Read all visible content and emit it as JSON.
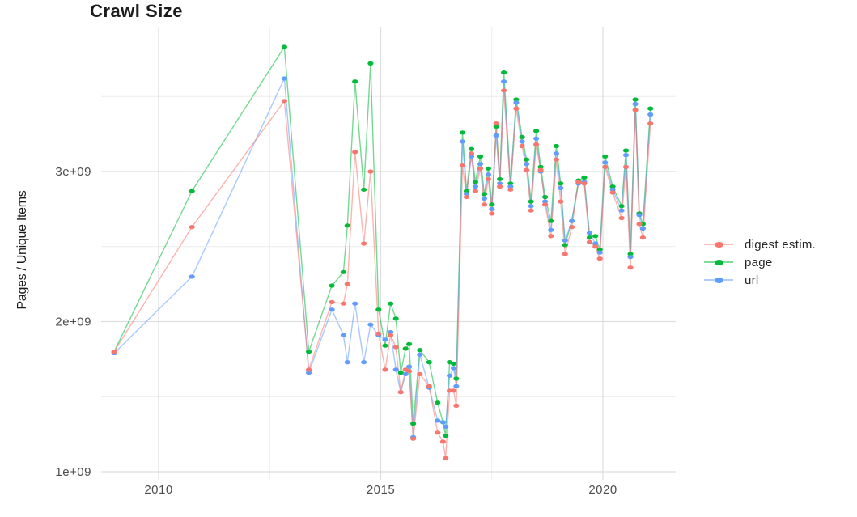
{
  "title": "Crawl Size",
  "ylabel": "Pages / Unique Items",
  "legend": {
    "position": "right",
    "items": [
      {
        "label": "digest estim.",
        "color": "#F8766D"
      },
      {
        "label": "page",
        "color": "#00BA38"
      },
      {
        "label": "url",
        "color": "#619CFF"
      }
    ]
  },
  "axes": {
    "x_tick_labels": [
      "2010",
      "2015",
      "2020"
    ],
    "y_tick_labels": [
      "1e+09",
      "2e+09",
      "3e+09"
    ]
  },
  "chart_data": {
    "type": "line",
    "title": "Crawl Size",
    "xlabel": "",
    "ylabel": "Pages / Unique Items",
    "x_unit": "year (decimal date of crawl)",
    "y_unit": "pages / unique items, billions (1e9)",
    "grid": "major+minor",
    "legend_position": "right",
    "xlim": [
      2008.7,
      2021.65
    ],
    "ylim_billions": [
      0.97,
      3.97
    ],
    "x_ticks": [
      2010,
      2015,
      2020
    ],
    "x_minor_ticks": [
      2012.5,
      2017.5
    ],
    "y_ticks_billions": [
      1,
      2,
      3
    ],
    "y_tick_labels": [
      "1e+09",
      "2e+09",
      "3e+09"
    ],
    "y_minor_ticks_billions": [
      1.5,
      2.5,
      3.5
    ],
    "x": [
      2009.0,
      2010.75,
      2012.83,
      2013.38,
      2013.9,
      2014.16,
      2014.25,
      2014.42,
      2014.62,
      2014.77,
      2014.95,
      2015.1,
      2015.22,
      2015.34,
      2015.45,
      2015.56,
      2015.64,
      2015.73,
      2015.88,
      2016.09,
      2016.28,
      2016.4,
      2016.46,
      2016.55,
      2016.64,
      2016.7,
      2016.84,
      2016.93,
      2017.04,
      2017.13,
      2017.24,
      2017.33,
      2017.42,
      2017.5,
      2017.6,
      2017.68,
      2017.77,
      2017.92,
      2018.05,
      2018.18,
      2018.28,
      2018.38,
      2018.5,
      2018.6,
      2018.7,
      2018.83,
      2018.95,
      2019.05,
      2019.15,
      2019.3,
      2019.45,
      2019.58,
      2019.7,
      2019.83,
      2019.93,
      2020.05,
      2020.22,
      2020.42,
      2020.52,
      2020.62,
      2020.73,
      2020.82,
      2020.9,
      2021.07
    ],
    "series": [
      {
        "name": "digest estim.",
        "color": "#F8766D",
        "draw_order": 3,
        "values_billions": [
          1.8,
          2.63,
          3.47,
          1.68,
          2.13,
          2.12,
          2.25,
          3.13,
          2.52,
          3.0,
          1.92,
          1.68,
          1.91,
          1.83,
          1.53,
          1.68,
          1.67,
          1.22,
          1.65,
          1.57,
          1.26,
          1.2,
          1.09,
          1.54,
          1.54,
          1.44,
          3.04,
          2.83,
          3.12,
          2.87,
          3.02,
          2.78,
          2.95,
          2.72,
          3.32,
          2.9,
          3.54,
          2.88,
          3.42,
          3.17,
          3.01,
          2.74,
          3.18,
          3.01,
          2.78,
          2.57,
          3.08,
          2.8,
          2.45,
          2.63,
          2.93,
          2.92,
          2.53,
          2.5,
          2.42,
          3.03,
          2.86,
          2.69,
          3.03,
          2.36,
          3.41,
          2.65,
          2.56,
          3.32
        ]
      },
      {
        "name": "page",
        "color": "#00BA38",
        "draw_order": 1,
        "values_billions": [
          1.8,
          2.87,
          3.83,
          1.8,
          2.24,
          2.33,
          2.64,
          3.6,
          2.88,
          3.72,
          2.08,
          1.84,
          2.12,
          2.02,
          1.66,
          1.82,
          1.85,
          1.32,
          1.81,
          1.73,
          1.46,
          1.33,
          1.24,
          1.73,
          1.72,
          1.62,
          3.26,
          2.87,
          3.15,
          2.93,
          3.1,
          2.85,
          3.02,
          2.78,
          3.3,
          2.95,
          3.66,
          2.92,
          3.48,
          3.23,
          3.08,
          2.8,
          3.27,
          3.03,
          2.83,
          2.67,
          3.17,
          2.92,
          2.51,
          2.67,
          2.94,
          2.96,
          2.56,
          2.57,
          2.48,
          3.1,
          2.9,
          2.77,
          3.14,
          2.45,
          3.48,
          2.72,
          2.65,
          3.42
        ]
      },
      {
        "name": "url",
        "color": "#619CFF",
        "draw_order": 2,
        "values_billions": [
          1.79,
          2.3,
          3.62,
          1.66,
          2.08,
          1.91,
          1.73,
          2.12,
          1.73,
          1.98,
          1.91,
          1.88,
          1.93,
          1.68,
          1.53,
          1.65,
          1.7,
          1.23,
          1.78,
          1.56,
          1.34,
          1.33,
          1.3,
          1.64,
          1.69,
          1.57,
          3.2,
          2.85,
          3.1,
          2.9,
          3.05,
          2.82,
          2.98,
          2.75,
          3.24,
          2.92,
          3.6,
          2.9,
          3.46,
          3.2,
          3.05,
          2.77,
          3.22,
          3.0,
          2.8,
          2.61,
          3.12,
          2.89,
          2.54,
          2.67,
          2.92,
          2.93,
          2.59,
          2.52,
          2.46,
          3.06,
          2.88,
          2.74,
          3.11,
          2.43,
          3.45,
          2.71,
          2.62,
          3.38
        ]
      }
    ]
  }
}
